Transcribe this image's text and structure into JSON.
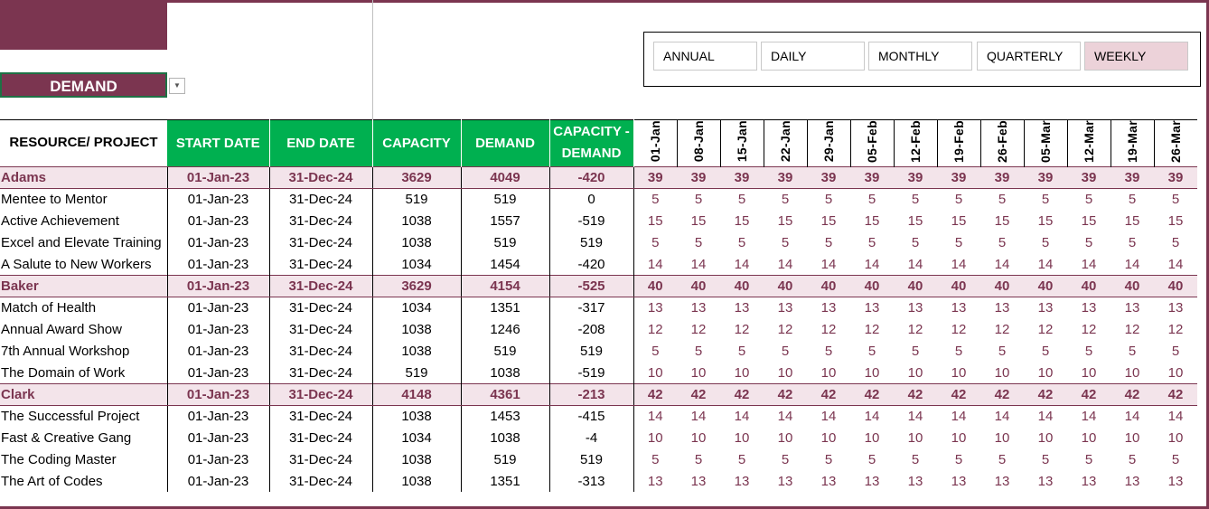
{
  "dropdown": {
    "value": "DEMAND"
  },
  "periods": [
    {
      "label": "ANNUAL",
      "active": false
    },
    {
      "label": "DAILY",
      "active": false
    },
    {
      "label": "MONTHLY",
      "active": false
    },
    {
      "label": "QUARTERLY",
      "active": false
    },
    {
      "label": "WEEKLY",
      "active": true
    }
  ],
  "headers": {
    "resource": "RESOURCE/ PROJECT",
    "start": "START DATE",
    "end": "END DATE",
    "capacity": "CAPACITY",
    "demand": "DEMAND",
    "diff": "CAPACITY - DEMAND"
  },
  "dates": [
    "01-Jan",
    "08-Jan",
    "15-Jan",
    "22-Jan",
    "29-Jan",
    "05-Feb",
    "12-Feb",
    "19-Feb",
    "26-Feb",
    "05-Mar",
    "12-Mar",
    "19-Mar",
    "26-Mar"
  ],
  "rows": [
    {
      "type": "group",
      "name": "Adams",
      "start": "01-Jan-23",
      "end": "31-Dec-24",
      "capacity": "3629",
      "demand": "4049",
      "diff": "-420",
      "value": "39"
    },
    {
      "type": "item",
      "name": "Mentee to Mentor",
      "start": "01-Jan-23",
      "end": "31-Dec-24",
      "capacity": "519",
      "demand": "519",
      "diff": "0",
      "value": "5"
    },
    {
      "type": "item",
      "name": "Active Achievement",
      "start": "01-Jan-23",
      "end": "31-Dec-24",
      "capacity": "1038",
      "demand": "1557",
      "diff": "-519",
      "value": "15"
    },
    {
      "type": "item",
      "name": "Excel and Elevate Training",
      "start": "01-Jan-23",
      "end": "31-Dec-24",
      "capacity": "1038",
      "demand": "519",
      "diff": "519",
      "value": "5"
    },
    {
      "type": "item",
      "name": "A Salute to New Workers",
      "start": "01-Jan-23",
      "end": "31-Dec-24",
      "capacity": "1034",
      "demand": "1454",
      "diff": "-420",
      "value": "14"
    },
    {
      "type": "group",
      "name": "Baker",
      "start": "01-Jan-23",
      "end": "31-Dec-24",
      "capacity": "3629",
      "demand": "4154",
      "diff": "-525",
      "value": "40"
    },
    {
      "type": "item",
      "name": "Match of Health",
      "start": "01-Jan-23",
      "end": "31-Dec-24",
      "capacity": "1034",
      "demand": "1351",
      "diff": "-317",
      "value": "13"
    },
    {
      "type": "item",
      "name": "Annual Award Show",
      "start": "01-Jan-23",
      "end": "31-Dec-24",
      "capacity": "1038",
      "demand": "1246",
      "diff": "-208",
      "value": "12"
    },
    {
      "type": "item",
      "name": "7th Annual Workshop",
      "start": "01-Jan-23",
      "end": "31-Dec-24",
      "capacity": "1038",
      "demand": "519",
      "diff": "519",
      "value": "5"
    },
    {
      "type": "item",
      "name": "The Domain of Work",
      "start": "01-Jan-23",
      "end": "31-Dec-24",
      "capacity": "519",
      "demand": "1038",
      "diff": "-519",
      "value": "10"
    },
    {
      "type": "group",
      "name": "Clark",
      "start": "01-Jan-23",
      "end": "31-Dec-24",
      "capacity": "4148",
      "demand": "4361",
      "diff": "-213",
      "value": "42"
    },
    {
      "type": "item",
      "name": "The Successful Project",
      "start": "01-Jan-23",
      "end": "31-Dec-24",
      "capacity": "1038",
      "demand": "1453",
      "diff": "-415",
      "value": "14"
    },
    {
      "type": "item",
      "name": "Fast & Creative Gang",
      "start": "01-Jan-23",
      "end": "31-Dec-24",
      "capacity": "1034",
      "demand": "1038",
      "diff": "-4",
      "value": "10"
    },
    {
      "type": "item",
      "name": "The Coding Master",
      "start": "01-Jan-23",
      "end": "31-Dec-24",
      "capacity": "1038",
      "demand": "519",
      "diff": "519",
      "value": "5"
    },
    {
      "type": "item",
      "name": "The Art of Codes",
      "start": "01-Jan-23",
      "end": "31-Dec-24",
      "capacity": "1038",
      "demand": "1351",
      "diff": "-313",
      "value": "13"
    }
  ],
  "colors": {
    "brand": "#7b3550",
    "header_green": "#00b050",
    "group_bg": "#f3e4ea",
    "active_period": "#ecd2d9"
  }
}
